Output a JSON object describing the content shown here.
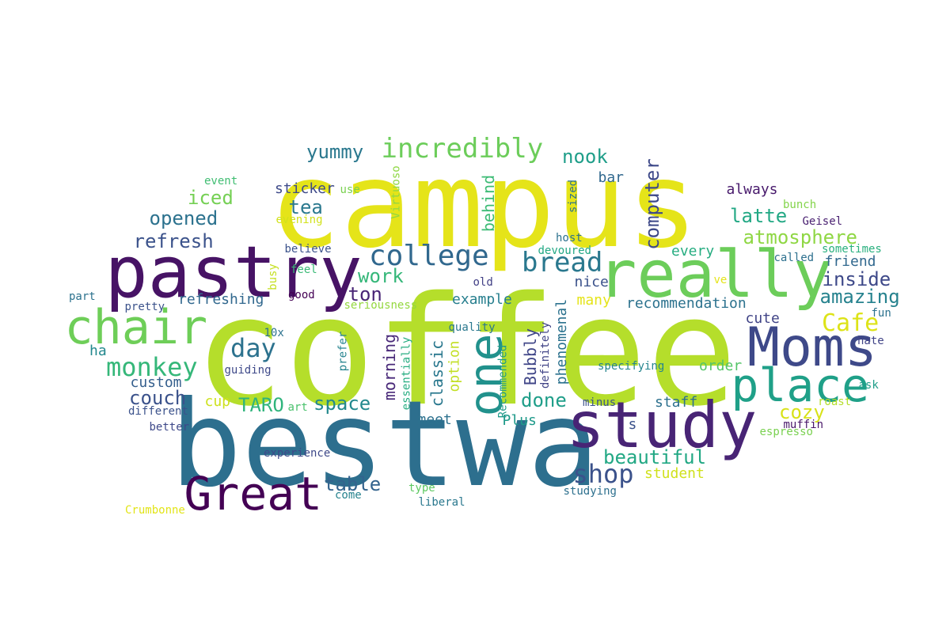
{
  "words": [
    {
      "text": "coffee",
      "color": "#b5de2b",
      "rot": 0
    },
    {
      "text": "campus",
      "color": "#e5e419",
      "rot": 0
    },
    {
      "text": "bestwa",
      "color": "#2d6f8e",
      "rot": 0
    },
    {
      "text": "pastry",
      "color": "#471365",
      "rot": 0
    },
    {
      "text": "really",
      "color": "#6ccd5a",
      "rot": 0
    },
    {
      "text": "study",
      "color": "#482475",
      "rot": 0
    },
    {
      "text": "Moms",
      "color": "#3e4989",
      "rot": 0
    },
    {
      "text": "chair",
      "color": "#6ece58",
      "rot": 0
    },
    {
      "text": "place",
      "color": "#1fa088",
      "rot": 0
    },
    {
      "text": "Great",
      "color": "#440154",
      "rot": 0
    },
    {
      "text": "one",
      "color": "#21918c",
      "rot": -90
    },
    {
      "text": "college",
      "color": "#31688e",
      "rot": 0
    },
    {
      "text": "incredibly",
      "color": "#6ccd5a",
      "rot": 0
    },
    {
      "text": "bread",
      "color": "#2a788e",
      "rot": 0
    },
    {
      "text": "monkey",
      "color": "#35b779",
      "rot": 0
    },
    {
      "text": "day",
      "color": "#2c728e",
      "rot": 0
    },
    {
      "text": "Cafe",
      "color": "#dde318",
      "rot": 0
    },
    {
      "text": "shop",
      "color": "#3b528b",
      "rot": 0
    },
    {
      "text": "inside",
      "color": "#3e4989",
      "rot": 0
    },
    {
      "text": "amazing",
      "color": "#26828e",
      "rot": 0
    },
    {
      "text": "atmosphere",
      "color": "#8fd744",
      "rot": 0
    },
    {
      "text": "latte",
      "color": "#22a884",
      "rot": 0
    },
    {
      "text": "computer",
      "color": "#3e4989",
      "rot": -90
    },
    {
      "text": "beautiful",
      "color": "#22a884",
      "rot": 0
    },
    {
      "text": "cozy",
      "color": "#d8e219",
      "rot": 0
    },
    {
      "text": "yummy",
      "color": "#2a788e",
      "rot": 0
    },
    {
      "text": "nook",
      "color": "#1f9e89",
      "rot": 0
    },
    {
      "text": "refresh",
      "color": "#3b528b",
      "rot": 0
    },
    {
      "text": "opened",
      "color": "#2c728e",
      "rot": 0
    },
    {
      "text": "iced",
      "color": "#75d054",
      "rot": 0
    },
    {
      "text": "tea",
      "color": "#2a788e",
      "rot": 0
    },
    {
      "text": "work",
      "color": "#35b779",
      "rot": 0
    },
    {
      "text": "ton",
      "color": "#482475",
      "rot": 0
    },
    {
      "text": "space",
      "color": "#23898e",
      "rot": 0
    },
    {
      "text": "table",
      "color": "#33638d",
      "rot": 0
    },
    {
      "text": "TARO",
      "color": "#2fb47c",
      "rot": 0
    },
    {
      "text": "couch",
      "color": "#3b528b",
      "rot": 0
    },
    {
      "text": "done",
      "color": "#1f9e89",
      "rot": 0
    },
    {
      "text": "morning",
      "color": "#482878",
      "rot": -90
    },
    {
      "text": "classic",
      "color": "#2a788e",
      "rot": -90
    },
    {
      "text": "behind",
      "color": "#3cbb75",
      "rot": -90
    },
    {
      "text": "Bubbly",
      "color": "#404688",
      "rot": -90
    },
    {
      "text": "phenomenal",
      "color": "#2c728e",
      "rot": -90
    },
    {
      "text": "option",
      "color": "#c2df23",
      "rot": -90
    },
    {
      "text": "refreshing",
      "color": "#31688e",
      "rot": 0
    },
    {
      "text": "recommendation",
      "color": "#2c728e",
      "rot": 0
    },
    {
      "text": "example",
      "color": "#277f8e",
      "rot": 0
    },
    {
      "text": "nice",
      "color": "#3b528b",
      "rot": 0
    },
    {
      "text": "many",
      "color": "#e5e419",
      "rot": 0
    },
    {
      "text": "cute",
      "color": "#414487",
      "rot": 0
    },
    {
      "text": "order",
      "color": "#54c568",
      "rot": 0
    },
    {
      "text": "staff",
      "color": "#2d708e",
      "rot": 0
    },
    {
      "text": "student",
      "color": "#d0e11c",
      "rot": 0
    },
    {
      "text": "every",
      "color": "#27ad81",
      "rot": 0
    },
    {
      "text": "friend",
      "color": "#31688e",
      "rot": 0
    },
    {
      "text": "always",
      "color": "#481a6c",
      "rot": 0
    },
    {
      "text": "bar",
      "color": "#31688e",
      "rot": 0
    },
    {
      "text": "sticker",
      "color": "#3e4a89",
      "rot": 0
    },
    {
      "text": "custom",
      "color": "#355f8d",
      "rot": 0
    },
    {
      "text": "ha",
      "color": "#23888e",
      "rot": 0
    },
    {
      "text": "cup",
      "color": "#cde11d",
      "rot": 0
    },
    {
      "text": "meet",
      "color": "#2d718e",
      "rot": 0
    },
    {
      "text": "Plus",
      "color": "#1f9a8a",
      "rot": 0
    },
    {
      "text": "s",
      "color": "#3b528b",
      "rot": 0
    },
    {
      "text": "specifying",
      "color": "#25858e",
      "rot": 0
    },
    {
      "text": "Geisel",
      "color": "#481f70",
      "rot": 0
    },
    {
      "text": "bunch",
      "color": "#84d44b",
      "rot": 0
    },
    {
      "text": "called",
      "color": "#2d708e",
      "rot": 0
    },
    {
      "text": "host",
      "color": "#2c728e",
      "rot": 0
    },
    {
      "text": "Virtuoso",
      "color": "#8fd744",
      "rot": -90
    },
    {
      "text": "sized",
      "color": "#2c728e",
      "rot": -90
    },
    {
      "text": "use",
      "color": "#7ad151",
      "rot": 0
    },
    {
      "text": "event",
      "color": "#40bd72",
      "rot": 0
    },
    {
      "text": "evening",
      "color": "#d2e21b",
      "rot": 0
    },
    {
      "text": "believe",
      "color": "#3b528b",
      "rot": 0
    },
    {
      "text": "feel",
      "color": "#3aba76",
      "rot": 0
    },
    {
      "text": "busy",
      "color": "#c5e021",
      "rot": -90
    },
    {
      "text": "good",
      "color": "#440154",
      "rot": 0
    },
    {
      "text": "old",
      "color": "#424086",
      "rot": 0
    },
    {
      "text": "seriousness",
      "color": "#95d840",
      "rot": 0
    },
    {
      "text": "pretty",
      "color": "#3b528b",
      "rot": 0
    },
    {
      "text": "part",
      "color": "#2c728e",
      "rot": 0
    },
    {
      "text": "quality",
      "color": "#2a788e",
      "rot": 0
    },
    {
      "text": "prefer",
      "color": "#25838e",
      "rot": -90
    },
    {
      "text": "essentially",
      "color": "#27ad81",
      "rot": -90
    },
    {
      "text": "Recommended",
      "color": "#1f9a8a",
      "rot": -90
    },
    {
      "text": "definitely",
      "color": "#414487",
      "rot": -90
    },
    {
      "text": "10x",
      "color": "#2c728e",
      "rot": 0
    },
    {
      "text": "guiding",
      "color": "#3e4989",
      "rot": 0
    },
    {
      "text": "different",
      "color": "#3b528b",
      "rot": 0
    },
    {
      "text": "better",
      "color": "#3e4989",
      "rot": 0
    },
    {
      "text": "art",
      "color": "#4ac16d",
      "rot": 0
    },
    {
      "text": "experience",
      "color": "#3e4989",
      "rot": 0
    },
    {
      "text": "Crumbonne",
      "color": "#e2e418",
      "rot": 0
    },
    {
      "text": "come",
      "color": "#26828e",
      "rot": 0
    },
    {
      "text": "type",
      "color": "#5ec962",
      "rot": 0
    },
    {
      "text": "liberal",
      "color": "#2a788e",
      "rot": 0
    },
    {
      "text": "studying",
      "color": "#2d708e",
      "rot": 0
    },
    {
      "text": "minus",
      "color": "#3b528b",
      "rot": 0
    },
    {
      "text": "devoured",
      "color": "#22a884",
      "rot": 0
    },
    {
      "text": "muffin",
      "color": "#481769",
      "rot": 0
    },
    {
      "text": "roast",
      "color": "#b5de2b",
      "rot": 0
    },
    {
      "text": "espresso",
      "color": "#7ad151",
      "rot": 0
    },
    {
      "text": "ask",
      "color": "#1f9e89",
      "rot": 0
    },
    {
      "text": "hate",
      "color": "#414487",
      "rot": 0
    },
    {
      "text": "fun",
      "color": "#2c728e",
      "rot": 0
    },
    {
      "text": "sometimes",
      "color": "#2ab07f",
      "rot": 0
    },
    {
      "text": "ve",
      "color": "#e5e419",
      "rot": 0
    }
  ]
}
